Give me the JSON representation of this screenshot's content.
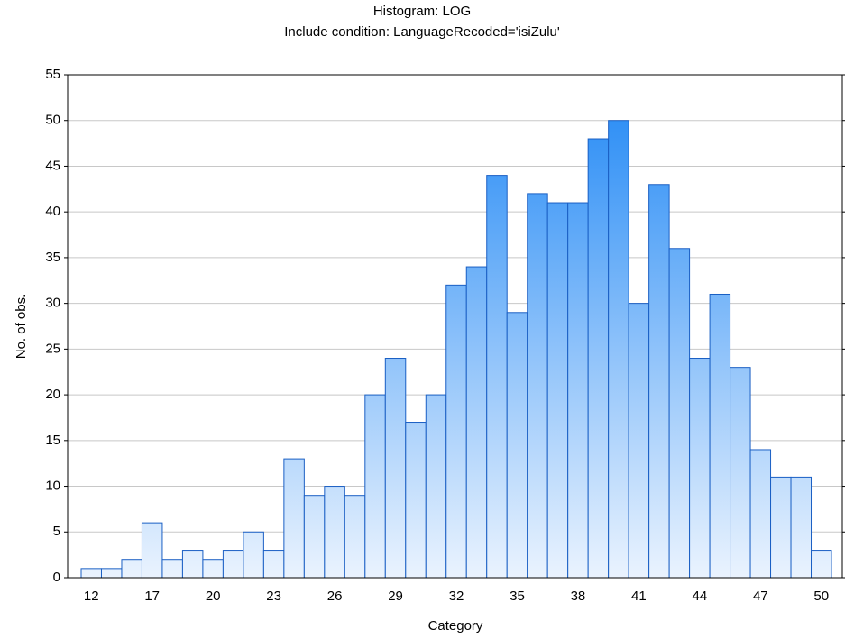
{
  "chart_data": {
    "type": "histogram",
    "title": "Histogram: LOG",
    "subtitle": "Include condition: LanguageRecoded='isiZulu'",
    "x_label": "Category",
    "y_label": "No. of obs.",
    "categories": [
      "12",
      null,
      null,
      "17",
      null,
      null,
      "20",
      null,
      null,
      "23",
      null,
      null,
      "26",
      null,
      null,
      "29",
      null,
      null,
      "32",
      null,
      null,
      "35",
      null,
      null,
      "38",
      null,
      null,
      "41",
      null,
      null,
      "44",
      null,
      null,
      "47",
      null,
      null,
      "50"
    ],
    "values": [
      1,
      1,
      2,
      6,
      2,
      3,
      2,
      3,
      5,
      3,
      13,
      9,
      10,
      9,
      20,
      24,
      17,
      20,
      32,
      34,
      44,
      29,
      42,
      41,
      41,
      48,
      50,
      30,
      43,
      36,
      24,
      31,
      23,
      14,
      11,
      11,
      3
    ],
    "color": "#1f87f5",
    "ylim": [
      0,
      55
    ],
    "yticks": [
      0,
      5,
      10,
      15,
      20,
      25,
      30,
      35,
      40,
      45,
      50,
      55
    ],
    "grid": true
  }
}
